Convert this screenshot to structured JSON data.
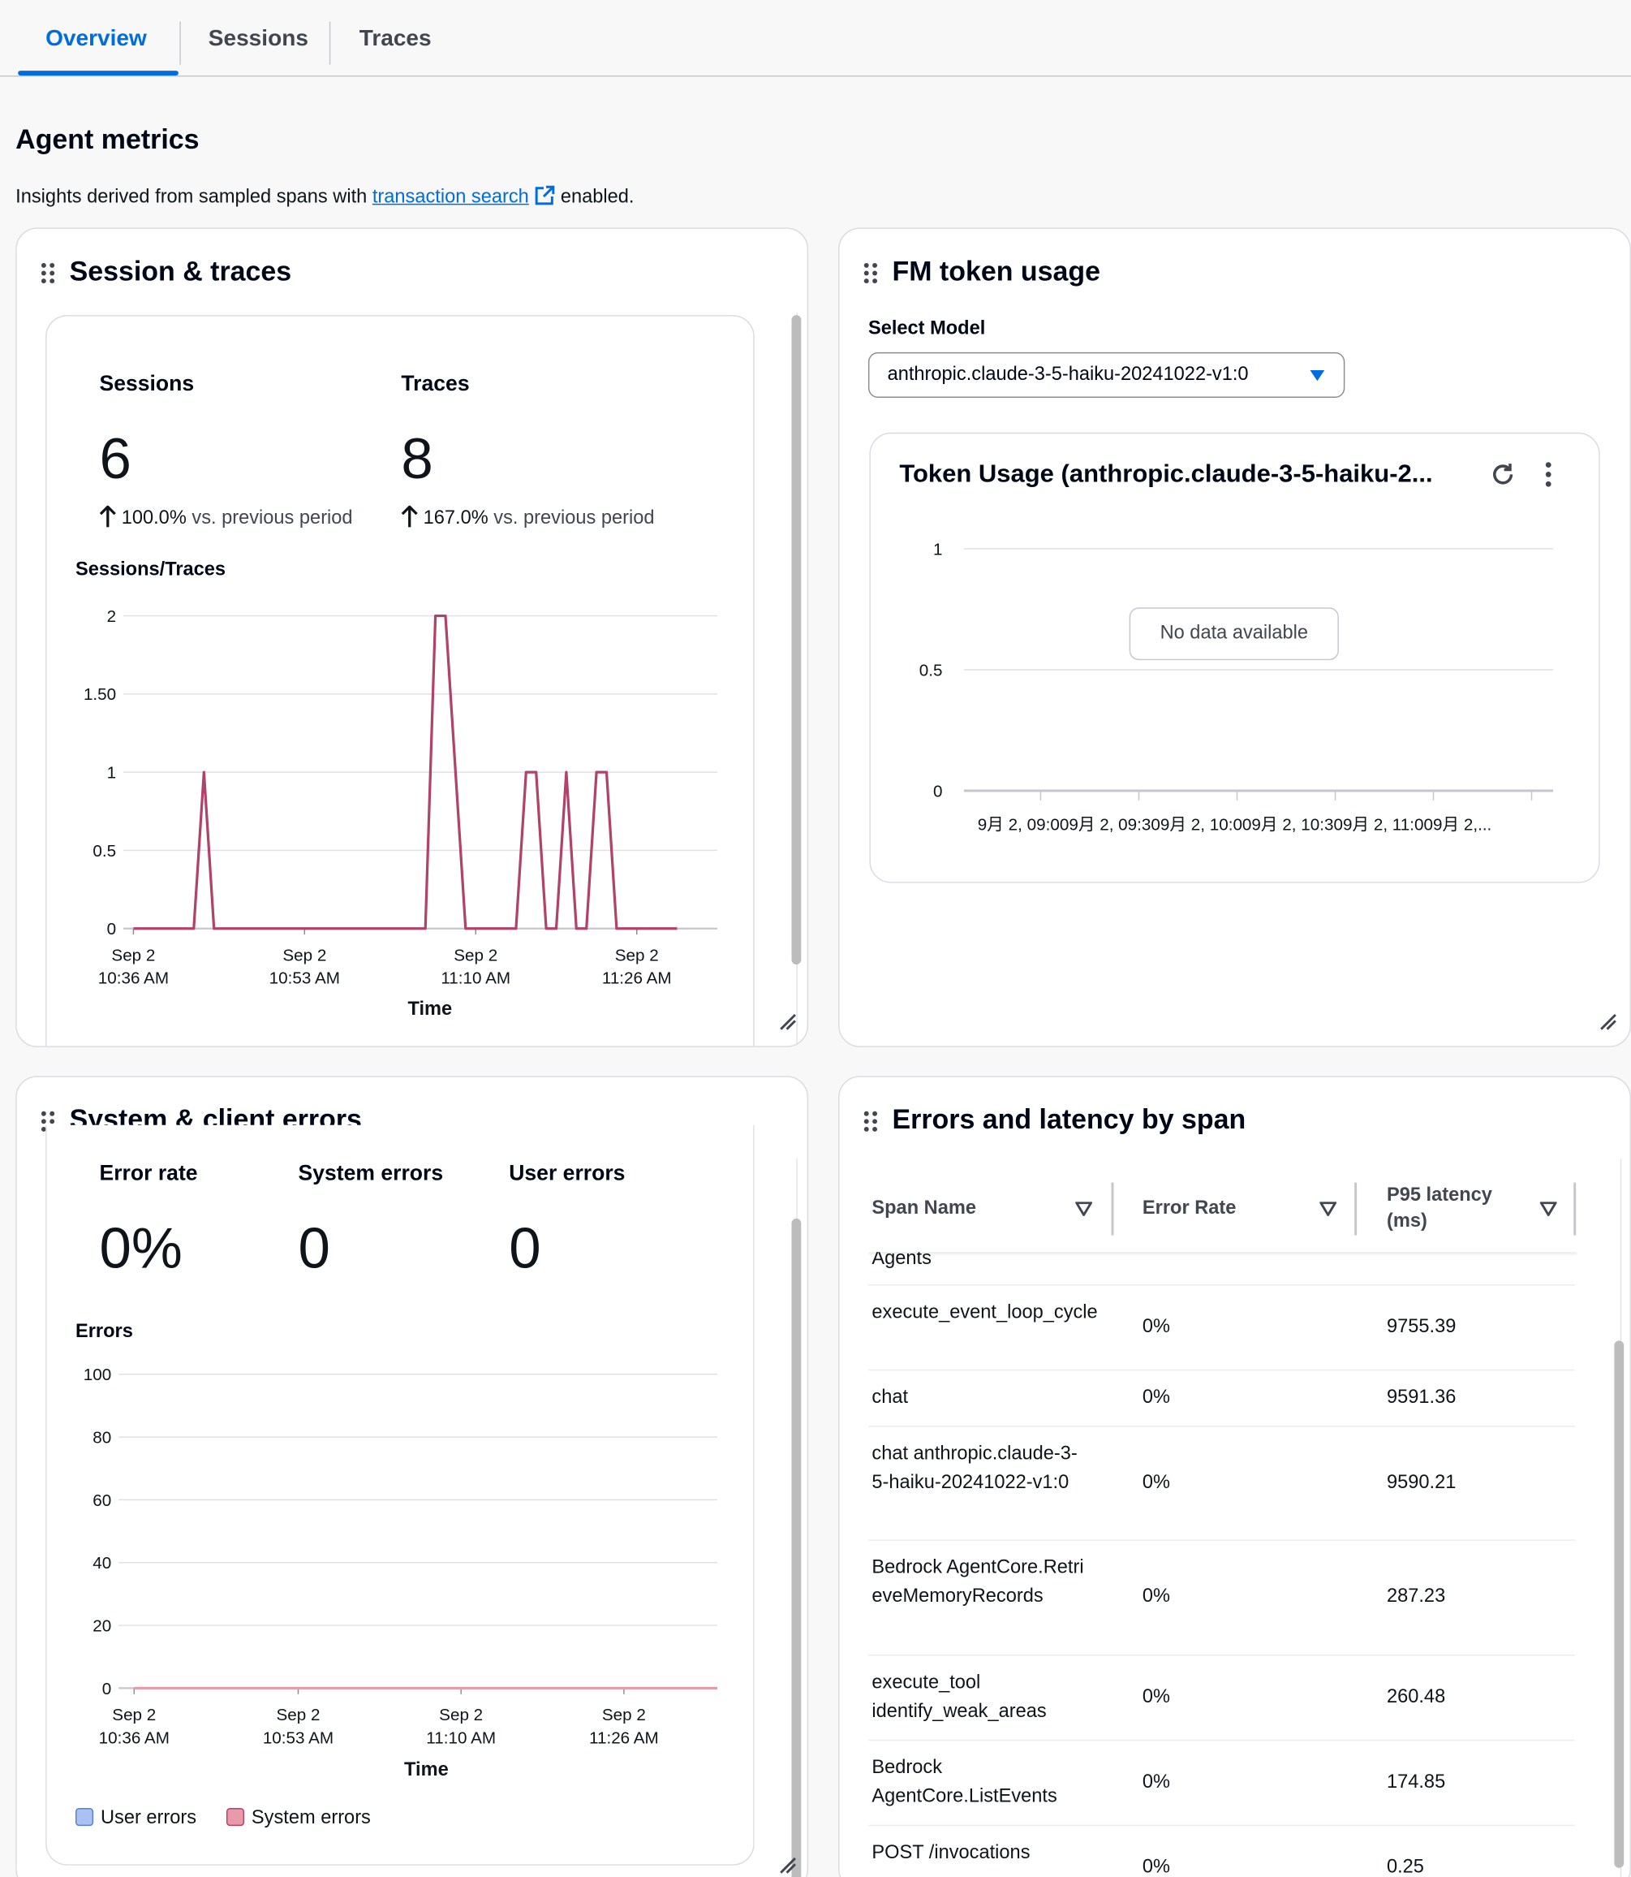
{
  "tabs": [
    {
      "label": "Overview",
      "active": true
    },
    {
      "label": "Sessions",
      "active": false
    },
    {
      "label": "Traces",
      "active": false
    }
  ],
  "header": {
    "title": "Agent metrics",
    "desc_prefix": "Insights derived from sampled spans with",
    "link_text": "transaction search",
    "desc_suffix": "enabled."
  },
  "session_panel": {
    "title": "Session & traces",
    "sessions_label": "Sessions",
    "sessions_value": "6",
    "sessions_delta": "100.0%",
    "traces_label": "Traces",
    "traces_value": "8",
    "traces_delta": "167.0%",
    "delta_suffix": "vs. previous period",
    "chart_title": "Sessions/Traces",
    "xlabel": "Time"
  },
  "token_panel": {
    "title": "FM token usage",
    "select_label": "Select Model",
    "select_value": "anthropic.claude-3-5-haiku-20241022-v1:0",
    "widget_title": "Token Usage (anthropic.claude-3-5-haiku-2...",
    "no_data": "No data available",
    "y_ticks": [
      "1",
      "0.5",
      "0"
    ],
    "x_axis_text": "9月 2, 09:009月 2, 09:309月 2, 10:009月 2, 10:309月 2, 11:009月 2,..."
  },
  "errors_panel": {
    "title": "System & client errors",
    "error_rate_label": "Error rate",
    "error_rate_value": "0%",
    "system_errors_label": "System errors",
    "system_errors_value": "0",
    "user_errors_label": "User errors",
    "user_errors_value": "0",
    "chart_title": "Errors",
    "xlabel": "Time",
    "legend": [
      {
        "label": "User errors",
        "color": "#a9c1f3"
      },
      {
        "label": "System errors",
        "color": "#e89aa8"
      }
    ]
  },
  "latency_panel": {
    "title": "Errors and latency by span",
    "columns": [
      "Span Name",
      "Error Rate",
      "P95 latency (ms)"
    ],
    "partial_row": "Agents",
    "rows": [
      {
        "name": "execute_event_loop_cycle",
        "error_rate": "0%",
        "p95": "9755.39"
      },
      {
        "name": "chat",
        "error_rate": "0%",
        "p95": "9591.36"
      },
      {
        "name": "chat anthropic.claude-3-5-haiku-20241022-v1:0",
        "error_rate": "0%",
        "p95": "9590.21"
      },
      {
        "name": "Bedrock AgentCore.RetrieveMemoryRecords",
        "error_rate": "0%",
        "p95": "287.23"
      },
      {
        "name": "execute_tool identify_weak_areas",
        "error_rate": "0%",
        "p95": "260.48"
      },
      {
        "name": "Bedrock AgentCore.ListEvents",
        "error_rate": "0%",
        "p95": "174.85"
      },
      {
        "name": "POST /invocations",
        "error_rate": "0%",
        "p95": "0.25"
      }
    ]
  },
  "chart_data": [
    {
      "type": "line",
      "title": "Sessions/Traces",
      "xlabel": "Time",
      "ylabel": "",
      "ylim": [
        0,
        2
      ],
      "y_ticks": [
        "0",
        "0.5",
        "1",
        "1.50",
        "2"
      ],
      "x_ticks": [
        {
          "date": "Sep 2",
          "time": "10:36 AM"
        },
        {
          "date": "Sep 2",
          "time": "10:53 AM"
        },
        {
          "date": "Sep 2",
          "time": "11:10 AM"
        },
        {
          "date": "Sep 2",
          "time": "11:26 AM"
        }
      ],
      "color": "#b0436a",
      "x_minutes": [
        36,
        42,
        43,
        44,
        65,
        66,
        67,
        69,
        74,
        75,
        76,
        77,
        78,
        79,
        80,
        81,
        82,
        83,
        84,
        90
      ],
      "series": [
        {
          "values": [
            0,
            0,
            1,
            0,
            0,
            2,
            2,
            0,
            0,
            1,
            1,
            0,
            0,
            1,
            0,
            0,
            1,
            1,
            0,
            0
          ]
        }
      ]
    },
    {
      "type": "line",
      "title": "Token Usage (anthropic.claude-3-5-haiku-2...",
      "ylim": [
        0,
        1
      ],
      "y_ticks": [
        "0",
        "0.5",
        "1"
      ],
      "series": []
    },
    {
      "type": "line",
      "title": "Errors",
      "xlabel": "Time",
      "ylim": [
        0,
        100
      ],
      "y_ticks": [
        "0",
        "20",
        "40",
        "60",
        "80",
        "100"
      ],
      "x_ticks": [
        {
          "date": "Sep 2",
          "time": "10:36 AM"
        },
        {
          "date": "Sep 2",
          "time": "10:53 AM"
        },
        {
          "date": "Sep 2",
          "time": "11:10 AM"
        },
        {
          "date": "Sep 2",
          "time": "11:26 AM"
        }
      ],
      "series": [
        {
          "name": "User errors",
          "values": [
            0,
            0,
            0,
            0
          ]
        },
        {
          "name": "System errors",
          "values": [
            0,
            0,
            0,
            0
          ]
        }
      ]
    }
  ]
}
